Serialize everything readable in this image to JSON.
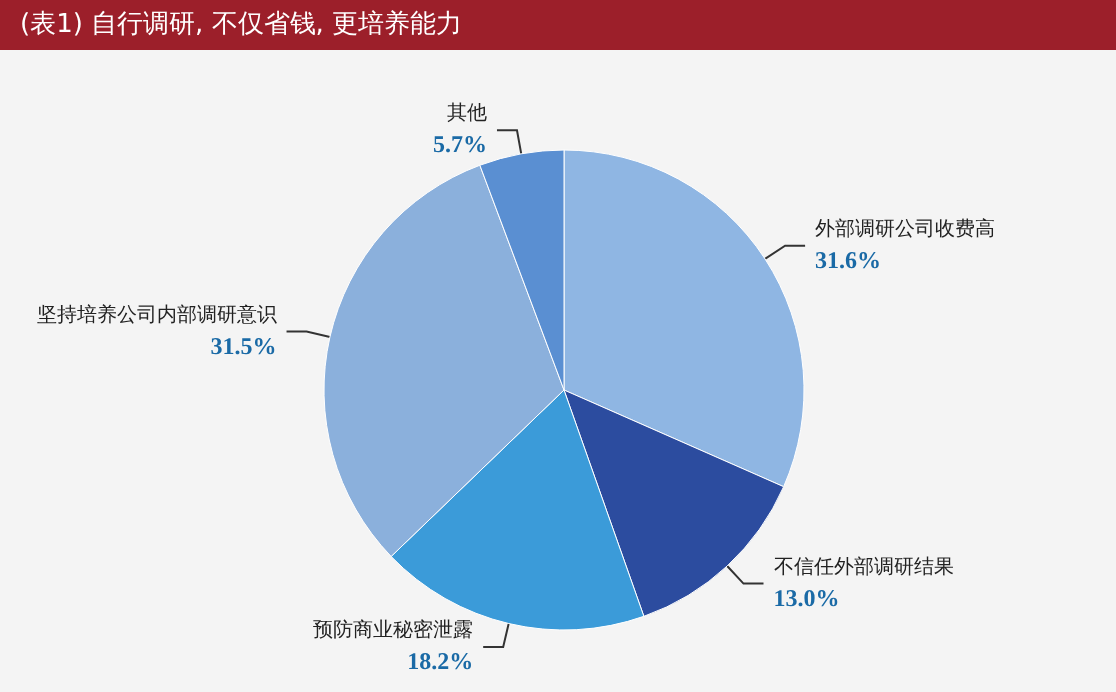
{
  "chart_data": {
    "type": "pie",
    "title": "(表1) 自行调研, 不仅省钱, 更培养能力",
    "categories": [
      "外部调研公司收费高",
      "不信任外部调研结果",
      "预防商业秘密泄露",
      "坚持培养公司内部调研意识",
      "其他"
    ],
    "values": [
      31.6,
      13.0,
      18.2,
      31.5,
      5.7
    ],
    "value_labels": [
      "31.6%",
      "13.0%",
      "18.2%",
      "31.5%",
      "5.7%"
    ],
    "colors": [
      "#8fb6e3",
      "#2c4c9f",
      "#3b9bd9",
      "#8bb0dc",
      "#5a8fd2"
    ],
    "legend": false
  }
}
